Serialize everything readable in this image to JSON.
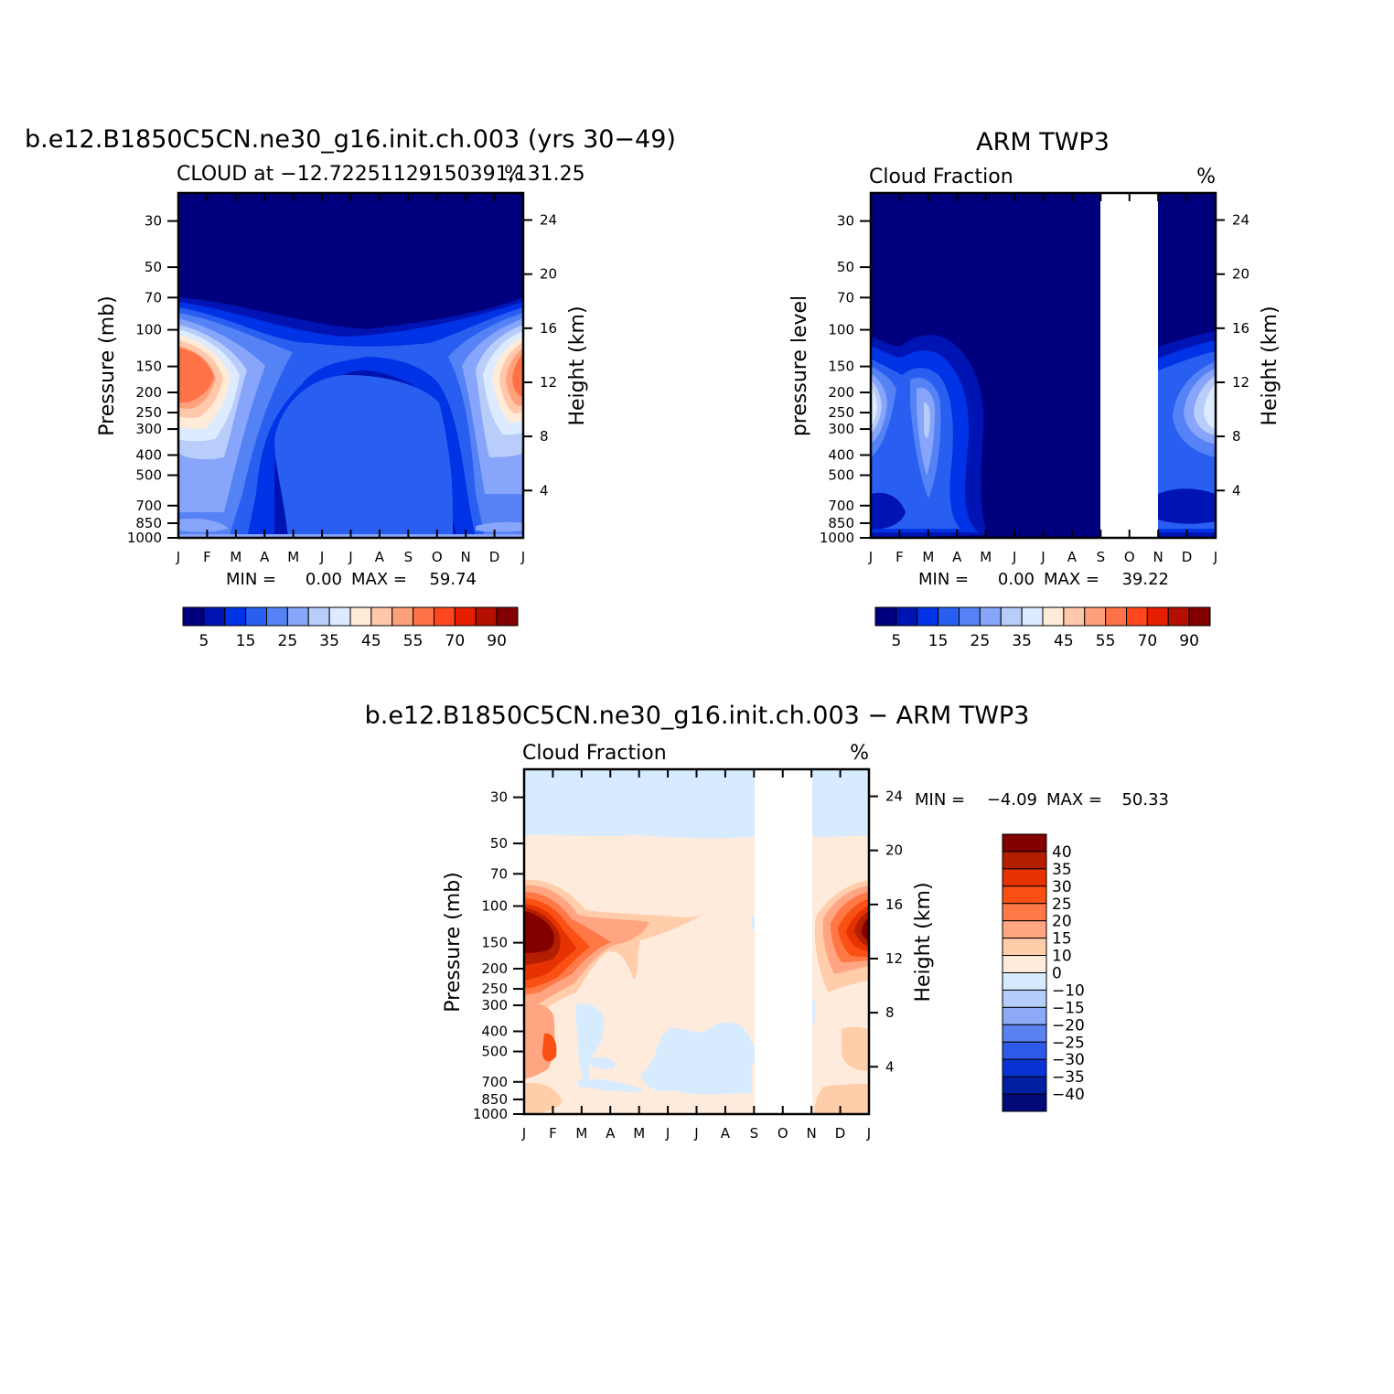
{
  "chart_data": [
    {
      "type": "heatmap",
      "title": "b.e12.B1850C5CN.ne30_g16.init.ch.003 (yrs 30−49)",
      "subtitle_left": "CLOUD at −12.72251129150391,131.25",
      "subtitle_right": "%",
      "ylabel": "Pressure (mb)",
      "ylabel_right": "Height (km)",
      "x_ticks": [
        "J",
        "F",
        "M",
        "A",
        "M",
        "J",
        "J",
        "A",
        "S",
        "O",
        "N",
        "D",
        "J"
      ],
      "y_ticks": [
        "30",
        "50",
        "70",
        "100",
        "150",
        "200",
        "250",
        "300",
        "400",
        "500",
        "700",
        "850",
        "1000"
      ],
      "y2_ticks": [
        "24",
        "20",
        "16",
        "12",
        "8",
        "4"
      ],
      "min_label": "MIN =",
      "min_value": "0.00",
      "max_label": "MAX =",
      "max_value": "59.74",
      "colorbar_labels": [
        "5",
        "15",
        "25",
        "35",
        "45",
        "55",
        "70",
        "90"
      ],
      "colors": [
        "#00007f",
        "#0014b4",
        "#0032e6",
        "#285ff0",
        "#5582f5",
        "#87a5fa",
        "#b9cdfa",
        "#dcebff",
        "#ffebd7",
        "#ffc8aa",
        "#ffa07d",
        "#ff7346",
        "#ff461e",
        "#e61e00",
        "#b40f00",
        "#820000"
      ]
    },
    {
      "type": "heatmap",
      "title": "ARM TWP3",
      "subtitle_left": "Cloud Fraction",
      "subtitle_right": "%",
      "ylabel": "pressure level",
      "ylabel_right": "Height (km)",
      "x_ticks": [
        "J",
        "F",
        "M",
        "A",
        "M",
        "J",
        "J",
        "A",
        "S",
        "O",
        "N",
        "D",
        "J"
      ],
      "y_ticks": [
        "30",
        "50",
        "70",
        "100",
        "150",
        "200",
        "250",
        "300",
        "400",
        "500",
        "700",
        "850",
        "1000"
      ],
      "y2_ticks": [
        "24",
        "20",
        "16",
        "12",
        "8",
        "4"
      ],
      "min_label": "MIN =",
      "min_value": "0.00",
      "max_label": "MAX =",
      "max_value": "39.22",
      "colorbar_labels": [
        "5",
        "15",
        "25",
        "35",
        "45",
        "55",
        "70",
        "90"
      ],
      "missing_months": [
        "S",
        "O",
        "N"
      ]
    },
    {
      "type": "heatmap",
      "title": "b.e12.B1850C5CN.ne30_g16.init.ch.003 − ARM TWP3",
      "subtitle_left": "Cloud Fraction",
      "subtitle_right": "%",
      "ylabel": "Pressure (mb)",
      "ylabel_right": "Height (km)",
      "x_ticks": [
        "J",
        "F",
        "M",
        "A",
        "M",
        "J",
        "J",
        "A",
        "S",
        "O",
        "N",
        "D",
        "J"
      ],
      "y_ticks": [
        "30",
        "50",
        "70",
        "100",
        "150",
        "200",
        "250",
        "300",
        "400",
        "500",
        "700",
        "850",
        "1000"
      ],
      "y2_ticks": [
        "24",
        "20",
        "16",
        "12",
        "8",
        "4"
      ],
      "min_label": "MIN =",
      "min_value": "−4.09",
      "max_label": "MAX =",
      "max_value": "50.33",
      "colorbar_labels": [
        "40",
        "35",
        "30",
        "25",
        "20",
        "15",
        "10",
        "0",
        "−10",
        "−15",
        "−20",
        "−25",
        "−30",
        "−35",
        "−40"
      ],
      "missing_months": [
        "S",
        "O",
        "N"
      ],
      "colors": [
        "#820000",
        "#b41e00",
        "#e63200",
        "#fa5014",
        "#ff7846",
        "#ffa582",
        "#ffcdaa",
        "#ffebdc",
        "#d7ebff",
        "#b4cdfa",
        "#8caaf5",
        "#5a82f0",
        "#2d5ae6",
        "#0a32d2",
        "#001ea0",
        "#000a78"
      ]
    }
  ]
}
